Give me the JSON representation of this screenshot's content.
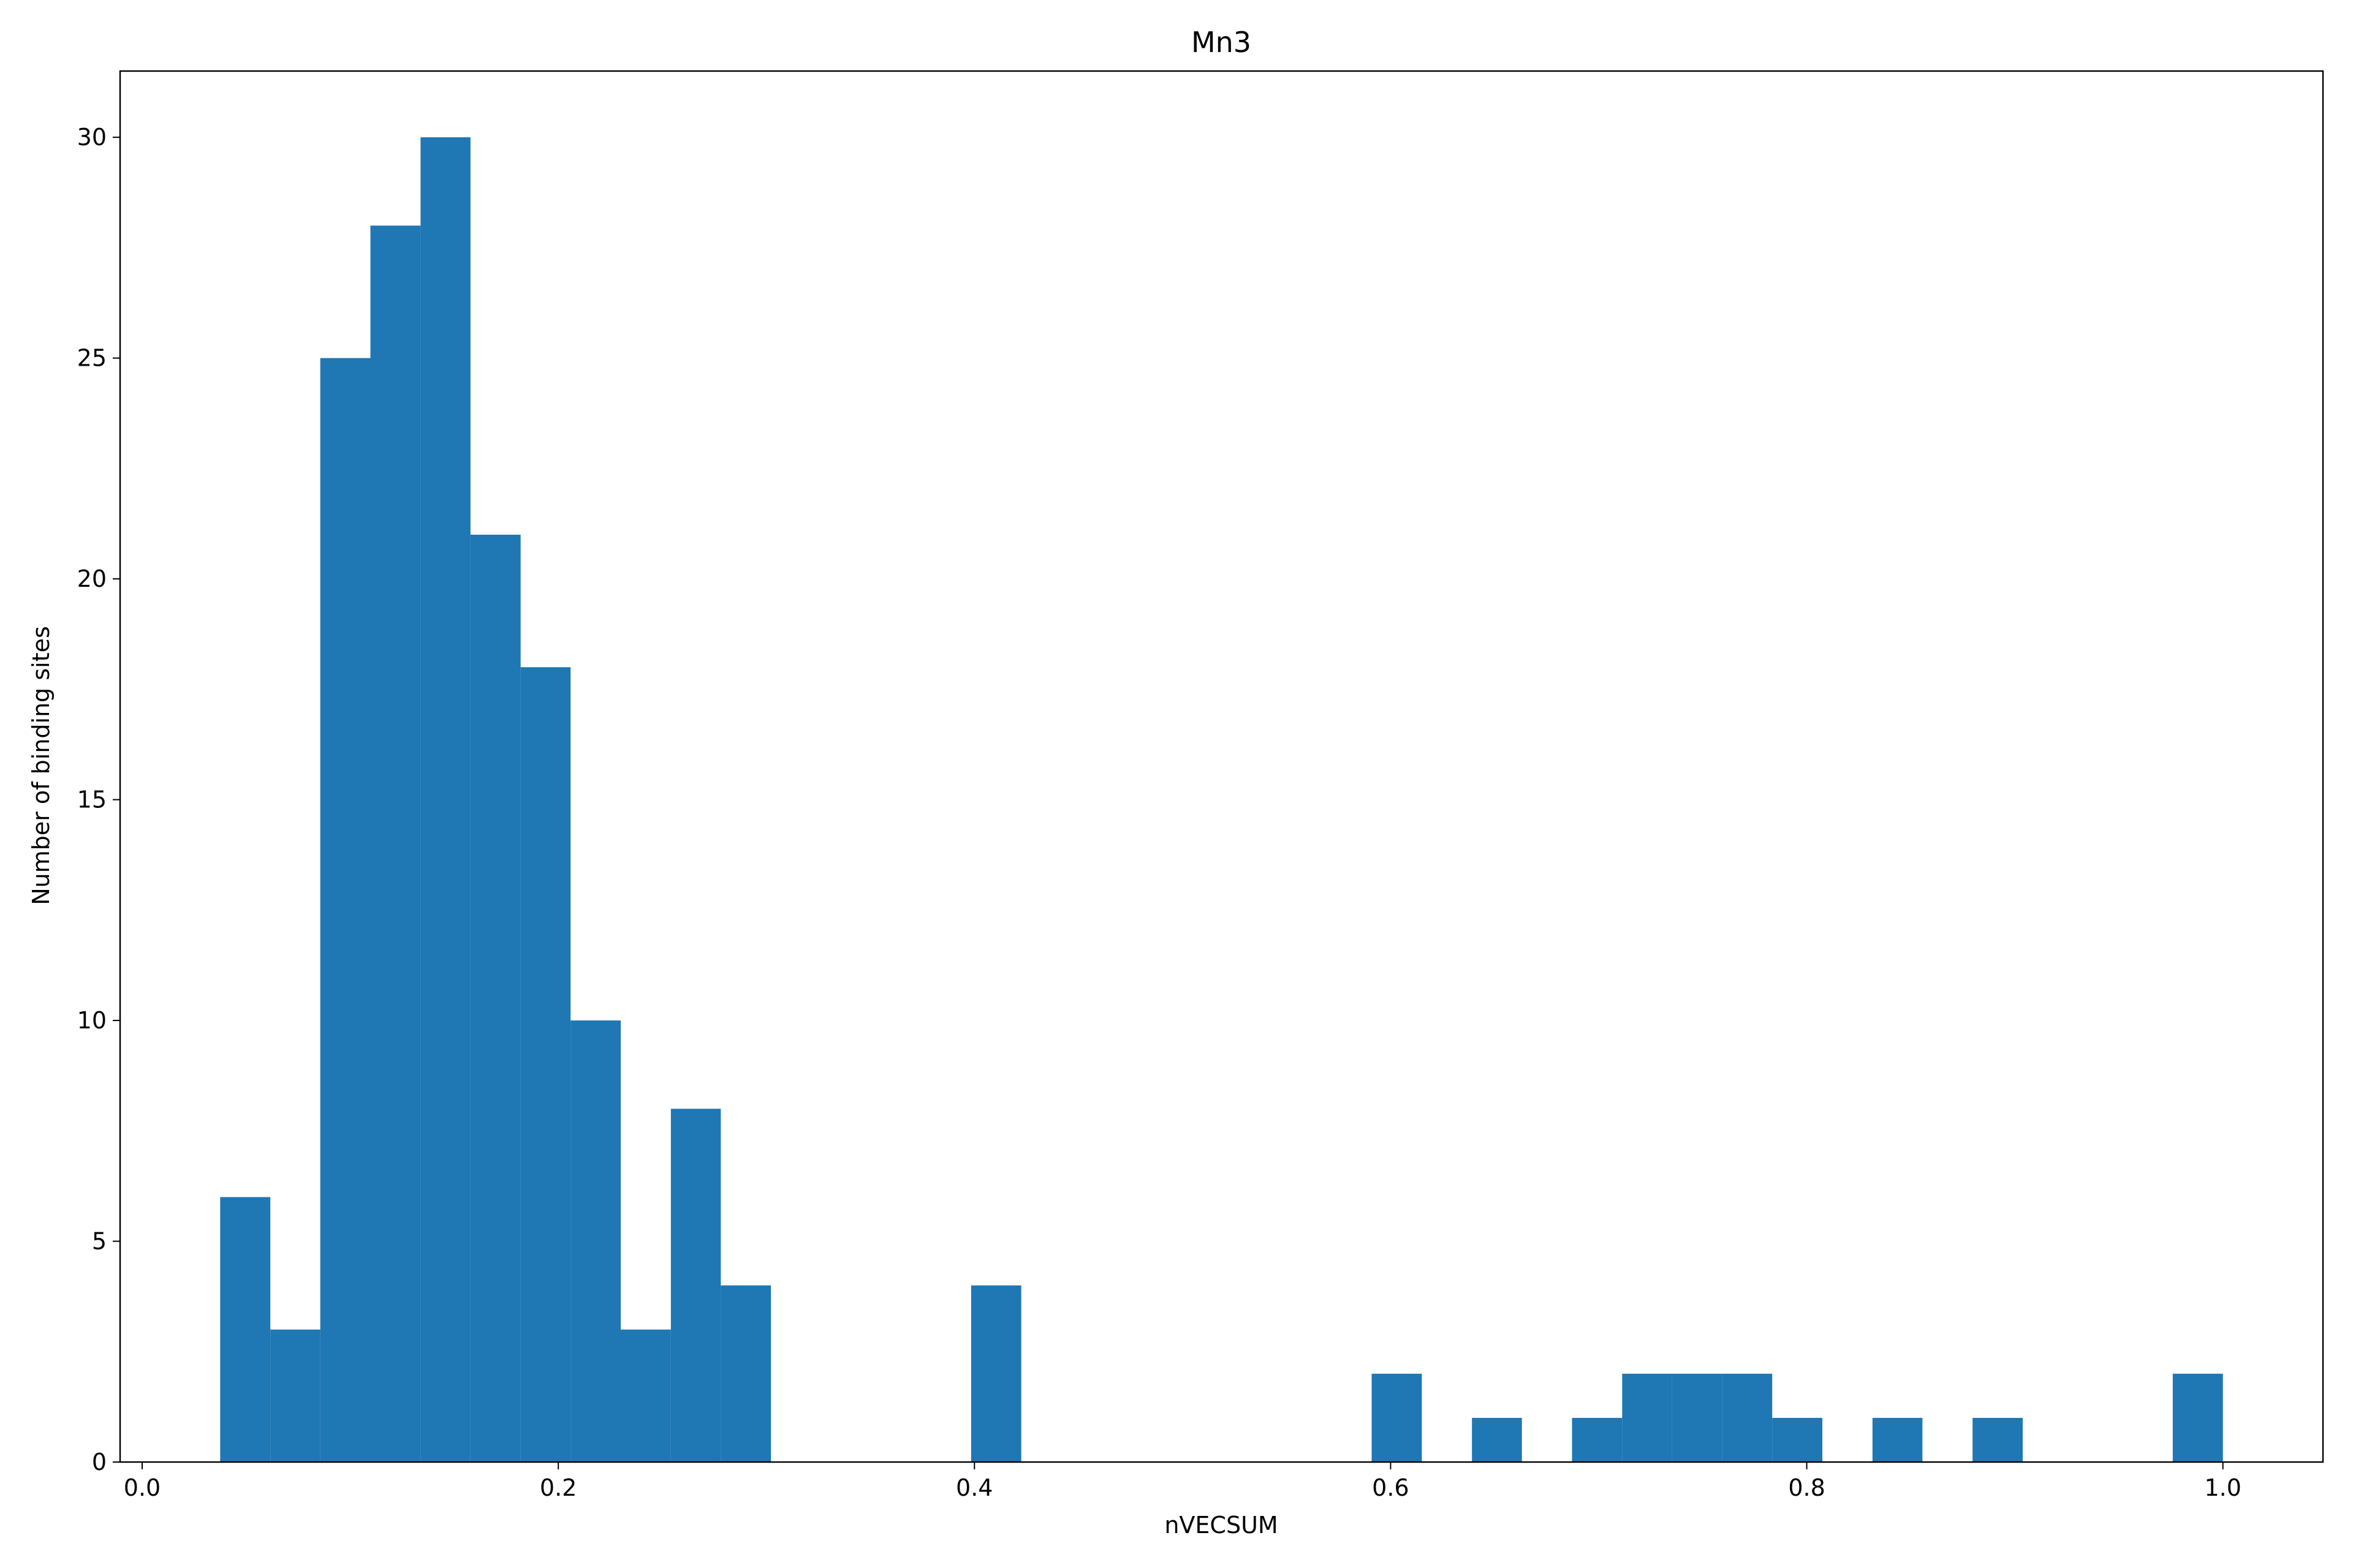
{
  "chart_data": {
    "type": "histogram",
    "title": "Mn3",
    "x_label": "nVECSUM",
    "y_label": "Number of binding sites",
    "bins": [
      0.0375,
      0.0616,
      0.0856,
      0.1097,
      0.1338,
      0.1578,
      0.1819,
      0.2059,
      0.23,
      0.2541,
      0.2781,
      0.3022,
      0.3263,
      0.3503,
      0.3744,
      0.3984,
      0.4225,
      0.4466,
      0.4706,
      0.4947,
      0.5188,
      0.5428,
      0.5669,
      0.5909,
      0.615,
      0.6391,
      0.6631,
      0.6872,
      0.7113,
      0.7353,
      0.7594,
      0.7834,
      0.8075,
      0.8316,
      0.8556,
      0.8797,
      0.9038,
      0.9278,
      0.9519,
      0.9759,
      1.0
    ],
    "counts": [
      6,
      3,
      25,
      28,
      30,
      21,
      18,
      10,
      3,
      8,
      4,
      0,
      0,
      0,
      0,
      4,
      0,
      0,
      0,
      0,
      0,
      0,
      0,
      2,
      0,
      1,
      0,
      1,
      2,
      2,
      2,
      1,
      0,
      1,
      0,
      1,
      0,
      0,
      0,
      2
    ],
    "color": "#1f77b4",
    "xlim": [
      -0.0106,
      1.0481
    ],
    "xticks": [
      {
        "value": 0,
        "label": "0.0"
      },
      0.2,
      0.4,
      0.6,
      0.8,
      {
        "value": 1,
        "label": "1.0"
      }
    ],
    "ylim": [
      0,
      31.5
    ],
    "yticks": [
      0,
      5,
      10,
      15,
      20,
      25,
      30
    ]
  }
}
